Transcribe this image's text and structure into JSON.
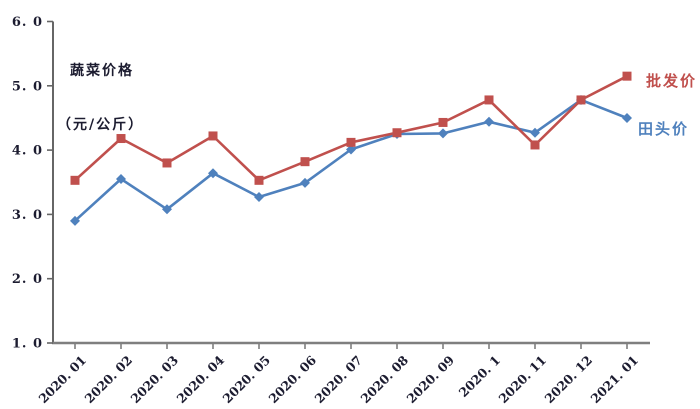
{
  "chart_data": {
    "type": "line",
    "title": "蔬菜价格（元/公斤）",
    "title_lines": [
      "蔬菜价格",
      "（元/公斤）"
    ],
    "categories": [
      "2020. 01",
      "2020. 02",
      "2020. 03",
      "2020. 04",
      "2020. 05",
      "2020. 06",
      "2020. 07",
      "2020. 08",
      "2020. 09",
      "2020. 1",
      "2020. 11",
      "2020. 12",
      "2021. 01"
    ],
    "y_ticks": [
      {
        "value": 6.0,
        "label": "6. 0"
      },
      {
        "value": 5.0,
        "label": "5. 0"
      },
      {
        "value": 4.0,
        "label": "4. 0"
      },
      {
        "value": 3.0,
        "label": "3. 0"
      },
      {
        "value": 2.0,
        "label": "2. 0"
      },
      {
        "value": 1.0,
        "label": "1. 0"
      }
    ],
    "ylim": [
      1.0,
      6.0
    ],
    "grid": false,
    "legend_position": "right",
    "series": [
      {
        "name": "批发价",
        "color": "#c0504d",
        "marker": "square",
        "values": [
          3.53,
          4.18,
          3.8,
          4.22,
          3.53,
          3.82,
          4.12,
          4.27,
          4.43,
          4.78,
          4.08,
          4.78,
          5.15
        ]
      },
      {
        "name": "田头价",
        "color": "#4f81bd",
        "marker": "diamond",
        "values": [
          2.9,
          3.55,
          3.08,
          3.64,
          3.27,
          3.49,
          4.01,
          4.25,
          4.26,
          4.44,
          4.27,
          4.78,
          4.5
        ]
      }
    ],
    "axis_colors": {
      "y_axis": "#666666",
      "x_axis": "#7f7f7f",
      "tick_label": "#1c1c30"
    }
  }
}
